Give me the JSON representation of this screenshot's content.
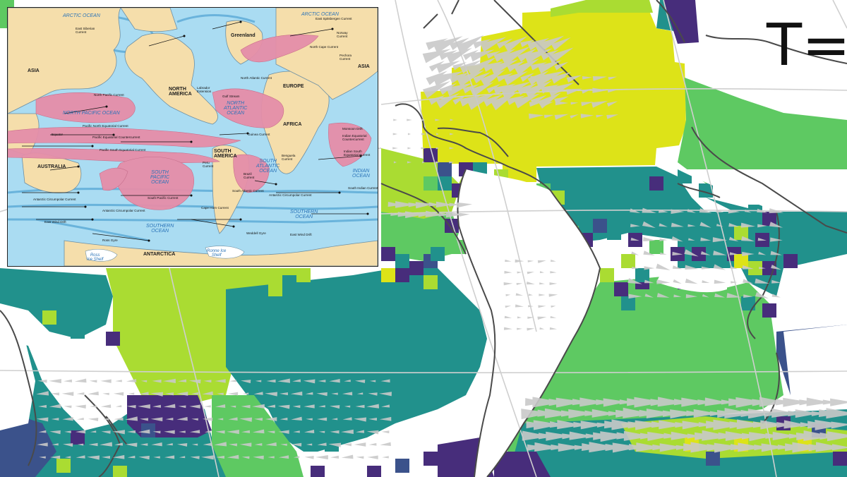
{
  "time_label": "T=",
  "palette": {
    "yellow": "#dde318",
    "lime": "#aadc32",
    "green": "#5ec962",
    "teal": "#21918c",
    "blue": "#3b528b",
    "purple": "#472d7b",
    "ocean_blue": "#aadcf2",
    "inset_land": "#f5deab",
    "current_warm": "#e58ea9",
    "current_cold": "#5aa9d6"
  },
  "inset": {
    "continents": [
      {
        "key": "asia_l",
        "text": "ASIA"
      },
      {
        "key": "asia_r",
        "text": "ASIA"
      },
      {
        "key": "greenland",
        "text": "Greenland"
      },
      {
        "key": "north_america",
        "text": "NORTH\nAMERICA"
      },
      {
        "key": "europe",
        "text": "EUROPE"
      },
      {
        "key": "africa",
        "text": "AFRICA"
      },
      {
        "key": "south_america",
        "text": "SOUTH\nAMERICA"
      },
      {
        "key": "australia",
        "text": "AUSTRALIA"
      },
      {
        "key": "antarctica",
        "text": "ANTARCTICA"
      }
    ],
    "oceans": [
      {
        "key": "arctic_l",
        "text": "ARCTIC OCEAN"
      },
      {
        "key": "arctic_r",
        "text": "ARCTIC OCEAN"
      },
      {
        "key": "north_pacific",
        "text": "NORTH PACIFIC OCEAN"
      },
      {
        "key": "north_atlantic",
        "text": "NORTH\nATLANTIC\nOCEAN"
      },
      {
        "key": "south_pacific",
        "text": "SOUTH\nPACIFIC\nOCEAN"
      },
      {
        "key": "south_atlantic",
        "text": "SOUTH\nATLANTIC\nOCEAN"
      },
      {
        "key": "indian",
        "text": "INDIAN\nOCEAN"
      },
      {
        "key": "southern_1",
        "text": "SOUTHERN\nOCEAN"
      },
      {
        "key": "southern_2",
        "text": "SOUTHERN\nOCEAN"
      }
    ],
    "currents": [
      {
        "key": "east_siberian",
        "text": "East Siberian\nCurrent"
      },
      {
        "key": "east_spitsbergen",
        "text": "East Spitsbergen Current"
      },
      {
        "key": "norway",
        "text": "Norway\nCurrent"
      },
      {
        "key": "pechora",
        "text": "Pechora\nCurrent"
      },
      {
        "key": "north_pacific_current",
        "text": "North Pacific Current"
      },
      {
        "key": "labrador",
        "text": "Labrador\nExtension"
      },
      {
        "key": "gulf_stream",
        "text": "Gulf Stream"
      },
      {
        "key": "north_atlantic_current",
        "text": "North Atlantic Current"
      },
      {
        "key": "north_cape",
        "text": "North Cape Current"
      },
      {
        "key": "pacific_north_eq",
        "text": "Pacific North Equatorial Current"
      },
      {
        "key": "pacific_eq_counter",
        "text": "Pacific Equatorial Countercurrent"
      },
      {
        "key": "pacific_south_eq",
        "text": "Pacific South Equatorial Current"
      },
      {
        "key": "equator",
        "text": "Equator"
      },
      {
        "key": "monsoon",
        "text": "Monsoon Drift"
      },
      {
        "key": "indian_eq_counter",
        "text": "Indian Equatorial\nCountercurrent"
      },
      {
        "key": "indian_south_eq",
        "text": "Indian South\nEquatorial Current"
      },
      {
        "key": "guinea",
        "text": "Guinea Current"
      },
      {
        "key": "benguela",
        "text": "Benguela\nCurrent"
      },
      {
        "key": "peru",
        "text": "Peru\nCurrent"
      },
      {
        "key": "brazil",
        "text": "Brazil\nCurrent"
      },
      {
        "key": "south_pacific_current",
        "text": "South Pacific Current"
      },
      {
        "key": "south_atlantic_current",
        "text": "South Atlantic Current"
      },
      {
        "key": "south_indian_current",
        "text": "South Indian Current"
      },
      {
        "key": "cape_horn",
        "text": "Cape Horn Current"
      },
      {
        "key": "acc_1",
        "text": "Antarctic Circumpolar Current"
      },
      {
        "key": "acc_2",
        "text": "Antarctic Circumpolar Current"
      },
      {
        "key": "acc_3",
        "text": "Antarctic Circumpolar Current"
      },
      {
        "key": "east_wind_1",
        "text": "East Wind Drift"
      },
      {
        "key": "east_wind_2",
        "text": "East Wind Drift"
      },
      {
        "key": "ross_gyre",
        "text": "Ross Gyre"
      },
      {
        "key": "weddell_gyre",
        "text": "Weddell Gyre"
      }
    ],
    "ice_shelves": [
      {
        "key": "ross",
        "text": "Ross\nIce Shelf"
      },
      {
        "key": "ronne",
        "text": "Ronne Ice\nShelf"
      }
    ]
  }
}
